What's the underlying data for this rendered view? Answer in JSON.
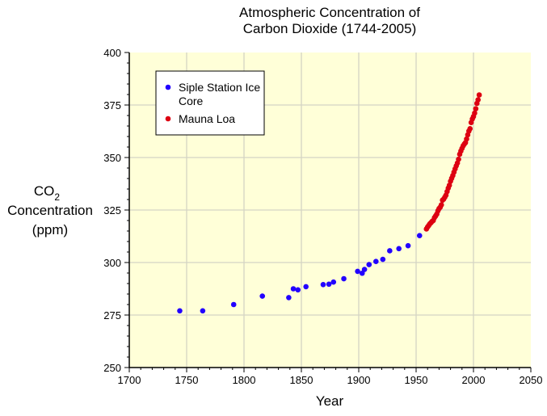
{
  "chart_data": {
    "type": "scatter",
    "title_lines": [
      "Atmospheric Concentration of",
      "Carbon Dioxide (1744-2005)"
    ],
    "xlabel": "Year",
    "ylabel_lines": [
      "CO",
      "Concentration",
      "(ppm)"
    ],
    "ylabel_subscript": "2",
    "xlim": [
      1700,
      2050
    ],
    "ylim": [
      250,
      400
    ],
    "xticks": [
      1700,
      1750,
      1800,
      1850,
      1900,
      1950,
      2000,
      2050
    ],
    "yticks": [
      250,
      275,
      300,
      325,
      350,
      375,
      400
    ],
    "grid": true,
    "background": "#ffffd8",
    "legend_position": "top-left",
    "series": [
      {
        "name": "Siple Station Ice Core",
        "color": "#2200ff",
        "x": [
          1744,
          1764,
          1791,
          1816,
          1839,
          1843,
          1847,
          1854,
          1869,
          1874,
          1878,
          1887,
          1899,
          1903,
          1905,
          1909,
          1915,
          1921,
          1927,
          1935,
          1943,
          1953
        ],
        "y": [
          277,
          277,
          280,
          284,
          283.3,
          287.5,
          287,
          288.5,
          289.5,
          289.7,
          290.7,
          292.3,
          295.8,
          294.9,
          296.7,
          299,
          300.5,
          301.5,
          305.6,
          306.6,
          308,
          312.8
        ]
      },
      {
        "name": "Mauna Loa",
        "color": "#dd0011",
        "x": [
          1959,
          1960,
          1961,
          1962,
          1963,
          1964,
          1965,
          1966,
          1967,
          1968,
          1969,
          1970,
          1971,
          1972,
          1973,
          1974,
          1975,
          1976,
          1977,
          1978,
          1979,
          1980,
          1981,
          1982,
          1983,
          1984,
          1985,
          1986,
          1987,
          1988,
          1989,
          1990,
          1991,
          1992,
          1993,
          1994,
          1995,
          1996,
          1997,
          1998,
          1999,
          2000,
          2001,
          2002,
          2003,
          2004,
          2005
        ],
        "y": [
          315.98,
          316.91,
          317.64,
          318.45,
          318.99,
          319.62,
          320.04,
          321.38,
          322.16,
          323.04,
          324.62,
          325.68,
          326.32,
          327.45,
          329.68,
          330.17,
          331.08,
          332.05,
          333.78,
          335.41,
          336.78,
          338.68,
          340.1,
          341.44,
          343.03,
          344.58,
          346.04,
          347.39,
          349.16,
          351.56,
          353.07,
          354.35,
          355.57,
          356.38,
          357.07,
          358.82,
          360.8,
          362.59,
          363.71,
          366.65,
          368.33,
          369.52,
          371.13,
          373.22,
          375.77,
          377.49,
          379.8
        ]
      }
    ]
  }
}
